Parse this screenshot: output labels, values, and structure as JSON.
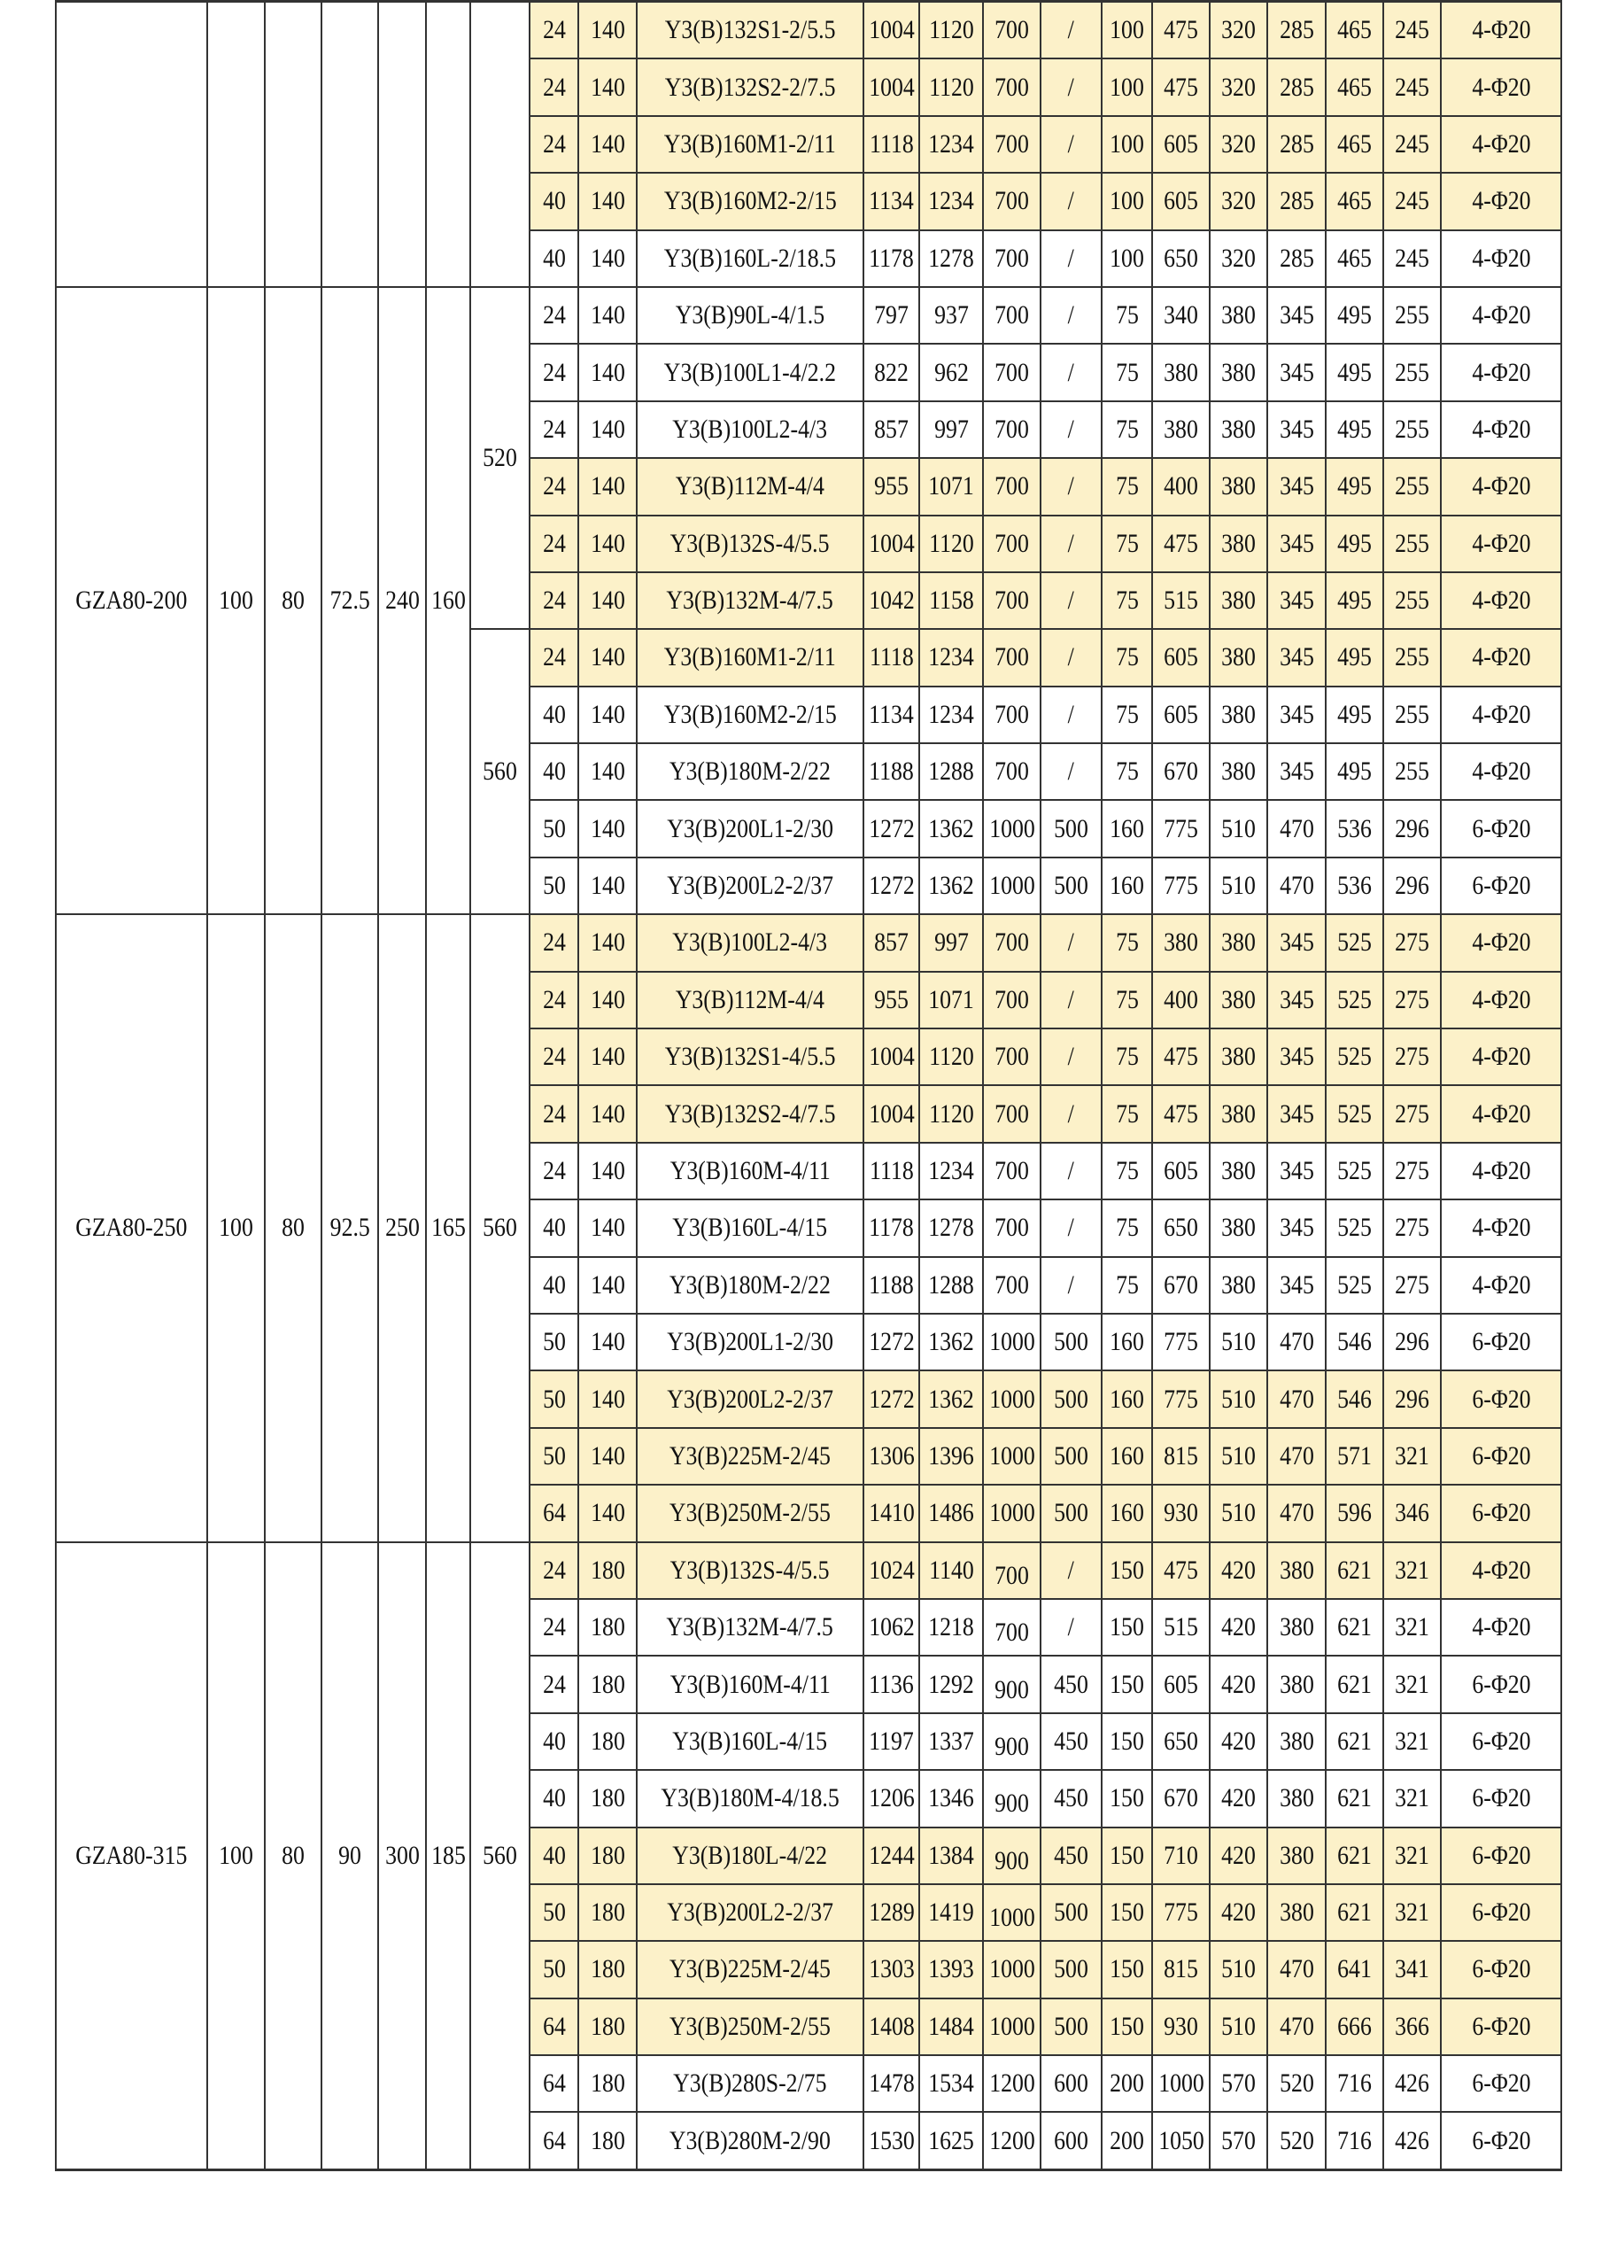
{
  "highlight_color": "#fcf1c9",
  "groups": [
    {
      "model": "",
      "p1": "",
      "p2": "",
      "p3": "",
      "p4": "",
      "p5": "",
      "sub": [
        {
          "depth": "",
          "rows": [
            {
              "hl": true,
              "v": [
                "24",
                "140",
                "Y3(B)132S1-2/5.5",
                "1004",
                "1120",
                "700",
                "/",
                "100",
                "475",
                "320",
                "285",
                "465",
                "245",
                "4-Φ20"
              ]
            },
            {
              "hl": true,
              "v": [
                "24",
                "140",
                "Y3(B)132S2-2/7.5",
                "1004",
                "1120",
                "700",
                "/",
                "100",
                "475",
                "320",
                "285",
                "465",
                "245",
                "4-Φ20"
              ]
            },
            {
              "hl": true,
              "v": [
                "24",
                "140",
                "Y3(B)160M1-2/11",
                "1118",
                "1234",
                "700",
                "/",
                "100",
                "605",
                "320",
                "285",
                "465",
                "245",
                "4-Φ20"
              ]
            },
            {
              "hl": true,
              "v": [
                "40",
                "140",
                "Y3(B)160M2-2/15",
                "1134",
                "1234",
                "700",
                "/",
                "100",
                "605",
                "320",
                "285",
                "465",
                "245",
                "4-Φ20"
              ]
            },
            {
              "hl": false,
              "v": [
                "40",
                "140",
                "Y3(B)160L-2/18.5",
                "1178",
                "1278",
                "700",
                "/",
                "100",
                "650",
                "320",
                "285",
                "465",
                "245",
                "4-Φ20"
              ]
            }
          ]
        }
      ]
    },
    {
      "model": "GZA80-200",
      "p1": "100",
      "p2": "80",
      "p3": "72.5",
      "p4": "240",
      "p5": "160",
      "sub": [
        {
          "depth": "520",
          "rows": [
            {
              "hl": false,
              "v": [
                "24",
                "140",
                "Y3(B)90L-4/1.5",
                "797",
                "937",
                "700",
                "/",
                "75",
                "340",
                "380",
                "345",
                "495",
                "255",
                "4-Φ20"
              ]
            },
            {
              "hl": false,
              "v": [
                "24",
                "140",
                "Y3(B)100L1-4/2.2",
                "822",
                "962",
                "700",
                "/",
                "75",
                "380",
                "380",
                "345",
                "495",
                "255",
                "4-Φ20"
              ]
            },
            {
              "hl": false,
              "v": [
                "24",
                "140",
                "Y3(B)100L2-4/3",
                "857",
                "997",
                "700",
                "/",
                "75",
                "380",
                "380",
                "345",
                "495",
                "255",
                "4-Φ20"
              ]
            },
            {
              "hl": true,
              "v": [
                "24",
                "140",
                "Y3(B)112M-4/4",
                "955",
                "1071",
                "700",
                "/",
                "75",
                "400",
                "380",
                "345",
                "495",
                "255",
                "4-Φ20"
              ]
            },
            {
              "hl": true,
              "v": [
                "24",
                "140",
                "Y3(B)132S-4/5.5",
                "1004",
                "1120",
                "700",
                "/",
                "75",
                "475",
                "380",
                "345",
                "495",
                "255",
                "4-Φ20"
              ]
            },
            {
              "hl": true,
              "v": [
                "24",
                "140",
                "Y3(B)132M-4/7.5",
                "1042",
                "1158",
                "700",
                "/",
                "75",
                "515",
                "380",
                "345",
                "495",
                "255",
                "4-Φ20"
              ]
            }
          ]
        },
        {
          "depth": "560",
          "rows": [
            {
              "hl": true,
              "v": [
                "24",
                "140",
                "Y3(B)160M1-2/11",
                "1118",
                "1234",
                "700",
                "/",
                "75",
                "605",
                "380",
                "345",
                "495",
                "255",
                "4-Φ20"
              ]
            },
            {
              "hl": false,
              "v": [
                "40",
                "140",
                "Y3(B)160M2-2/15",
                "1134",
                "1234",
                "700",
                "/",
                "75",
                "605",
                "380",
                "345",
                "495",
                "255",
                "4-Φ20"
              ]
            },
            {
              "hl": false,
              "v": [
                "40",
                "140",
                "Y3(B)180M-2/22",
                "1188",
                "1288",
                "700",
                "/",
                "75",
                "670",
                "380",
                "345",
                "495",
                "255",
                "4-Φ20"
              ]
            },
            {
              "hl": false,
              "v": [
                "50",
                "140",
                "Y3(B)200L1-2/30",
                "1272",
                "1362",
                "1000",
                "500",
                "160",
                "775",
                "510",
                "470",
                "536",
                "296",
                "6-Φ20"
              ]
            },
            {
              "hl": false,
              "v": [
                "50",
                "140",
                "Y3(B)200L2-2/37",
                "1272",
                "1362",
                "1000",
                "500",
                "160",
                "775",
                "510",
                "470",
                "536",
                "296",
                "6-Φ20"
              ]
            }
          ]
        }
      ]
    },
    {
      "model": "GZA80-250",
      "p1": "100",
      "p2": "80",
      "p3": "92.5",
      "p4": "250",
      "p5": "165",
      "sub": [
        {
          "depth": "560",
          "rows": [
            {
              "hl": true,
              "v": [
                "24",
                "140",
                "Y3(B)100L2-4/3",
                "857",
                "997",
                "700",
                "/",
                "75",
                "380",
                "380",
                "345",
                "525",
                "275",
                "4-Φ20"
              ]
            },
            {
              "hl": true,
              "v": [
                "24",
                "140",
                "Y3(B)112M-4/4",
                "955",
                "1071",
                "700",
                "/",
                "75",
                "400",
                "380",
                "345",
                "525",
                "275",
                "4-Φ20"
              ]
            },
            {
              "hl": true,
              "v": [
                "24",
                "140",
                "Y3(B)132S1-4/5.5",
                "1004",
                "1120",
                "700",
                "/",
                "75",
                "475",
                "380",
                "345",
                "525",
                "275",
                "4-Φ20"
              ]
            },
            {
              "hl": true,
              "v": [
                "24",
                "140",
                "Y3(B)132S2-4/7.5",
                "1004",
                "1120",
                "700",
                "/",
                "75",
                "475",
                "380",
                "345",
                "525",
                "275",
                "4-Φ20"
              ]
            },
            {
              "hl": false,
              "v": [
                "24",
                "140",
                "Y3(B)160M-4/11",
                "1118",
                "1234",
                "700",
                "/",
                "75",
                "605",
                "380",
                "345",
                "525",
                "275",
                "4-Φ20"
              ]
            },
            {
              "hl": false,
              "v": [
                "40",
                "140",
                "Y3(B)160L-4/15",
                "1178",
                "1278",
                "700",
                "/",
                "75",
                "650",
                "380",
                "345",
                "525",
                "275",
                "4-Φ20"
              ]
            },
            {
              "hl": false,
              "v": [
                "40",
                "140",
                "Y3(B)180M-2/22",
                "1188",
                "1288",
                "700",
                "/",
                "75",
                "670",
                "380",
                "345",
                "525",
                "275",
                "4-Φ20"
              ]
            },
            {
              "hl": false,
              "v": [
                "50",
                "140",
                "Y3(B)200L1-2/30",
                "1272",
                "1362",
                "1000",
                "500",
                "160",
                "775",
                "510",
                "470",
                "546",
                "296",
                "6-Φ20"
              ]
            },
            {
              "hl": true,
              "v": [
                "50",
                "140",
                "Y3(B)200L2-2/37",
                "1272",
                "1362",
                "1000",
                "500",
                "160",
                "775",
                "510",
                "470",
                "546",
                "296",
                "6-Φ20"
              ]
            },
            {
              "hl": true,
              "v": [
                "50",
                "140",
                "Y3(B)225M-2/45",
                "1306",
                "1396",
                "1000",
                "500",
                "160",
                "815",
                "510",
                "470",
                "571",
                "321",
                "6-Φ20"
              ]
            },
            {
              "hl": true,
              "v": [
                "64",
                "140",
                "Y3(B)250M-2/55",
                "1410",
                "1486",
                "1000",
                "500",
                "160",
                "930",
                "510",
                "470",
                "596",
                "346",
                "6-Φ20"
              ]
            }
          ]
        }
      ]
    },
    {
      "model": "GZA80-315",
      "p1": "100",
      "p2": "80",
      "p3": "90",
      "p4": "300",
      "p5": "185",
      "sub": [
        {
          "depth": "560",
          "rows": [
            {
              "hl": true,
              "low": true,
              "v": [
                "24",
                "180",
                "Y3(B)132S-4/5.5",
                "1024",
                "1140",
                "700",
                "/",
                "150",
                "475",
                "420",
                "380",
                "621",
                "321",
                "4-Φ20"
              ]
            },
            {
              "hl": false,
              "low": true,
              "v": [
                "24",
                "180",
                "Y3(B)132M-4/7.5",
                "1062",
                "1218",
                "700",
                "/",
                "150",
                "515",
                "420",
                "380",
                "621",
                "321",
                "4-Φ20"
              ]
            },
            {
              "hl": false,
              "low": true,
              "v": [
                "24",
                "180",
                "Y3(B)160M-4/11",
                "1136",
                "1292",
                "900",
                "450",
                "150",
                "605",
                "420",
                "380",
                "621",
                "321",
                "6-Φ20"
              ]
            },
            {
              "hl": false,
              "low": true,
              "v": [
                "40",
                "180",
                "Y3(B)160L-4/15",
                "1197",
                "1337",
                "900",
                "450",
                "150",
                "650",
                "420",
                "380",
                "621",
                "321",
                "6-Φ20"
              ]
            },
            {
              "hl": false,
              "low": true,
              "v": [
                "40",
                "180",
                "Y3(B)180M-4/18.5",
                "1206",
                "1346",
                "900",
                "450",
                "150",
                "670",
                "420",
                "380",
                "621",
                "321",
                "6-Φ20"
              ]
            },
            {
              "hl": true,
              "low": true,
              "v": [
                "40",
                "180",
                "Y3(B)180L-4/22",
                "1244",
                "1384",
                "900",
                "450",
                "150",
                "710",
                "420",
                "380",
                "621",
                "321",
                "6-Φ20"
              ]
            },
            {
              "hl": true,
              "low": true,
              "v": [
                "50",
                "180",
                "Y3(B)200L2-2/37",
                "1289",
                "1419",
                "1000",
                "500",
                "150",
                "775",
                "420",
                "380",
                "621",
                "321",
                "6-Φ20"
              ]
            },
            {
              "hl": true,
              "v": [
                "50",
                "180",
                "Y3(B)225M-2/45",
                "1303",
                "1393",
                "1000",
                "500",
                "150",
                "815",
                "510",
                "470",
                "641",
                "341",
                "6-Φ20"
              ]
            },
            {
              "hl": true,
              "v": [
                "64",
                "180",
                "Y3(B)250M-2/55",
                "1408",
                "1484",
                "1000",
                "500",
                "150",
                "930",
                "510",
                "470",
                "666",
                "366",
                "6-Φ20"
              ]
            },
            {
              "hl": false,
              "v": [
                "64",
                "180",
                "Y3(B)280S-2/75",
                "1478",
                "1534",
                "1200",
                "600",
                "200",
                "1000",
                "570",
                "520",
                "716",
                "426",
                "6-Φ20"
              ]
            },
            {
              "hl": false,
              "v": [
                "64",
                "180",
                "Y3(B)280M-2/90",
                "1530",
                "1625",
                "1200",
                "600",
                "200",
                "1050",
                "570",
                "520",
                "716",
                "426",
                "6-Φ20"
              ]
            }
          ]
        }
      ]
    }
  ]
}
